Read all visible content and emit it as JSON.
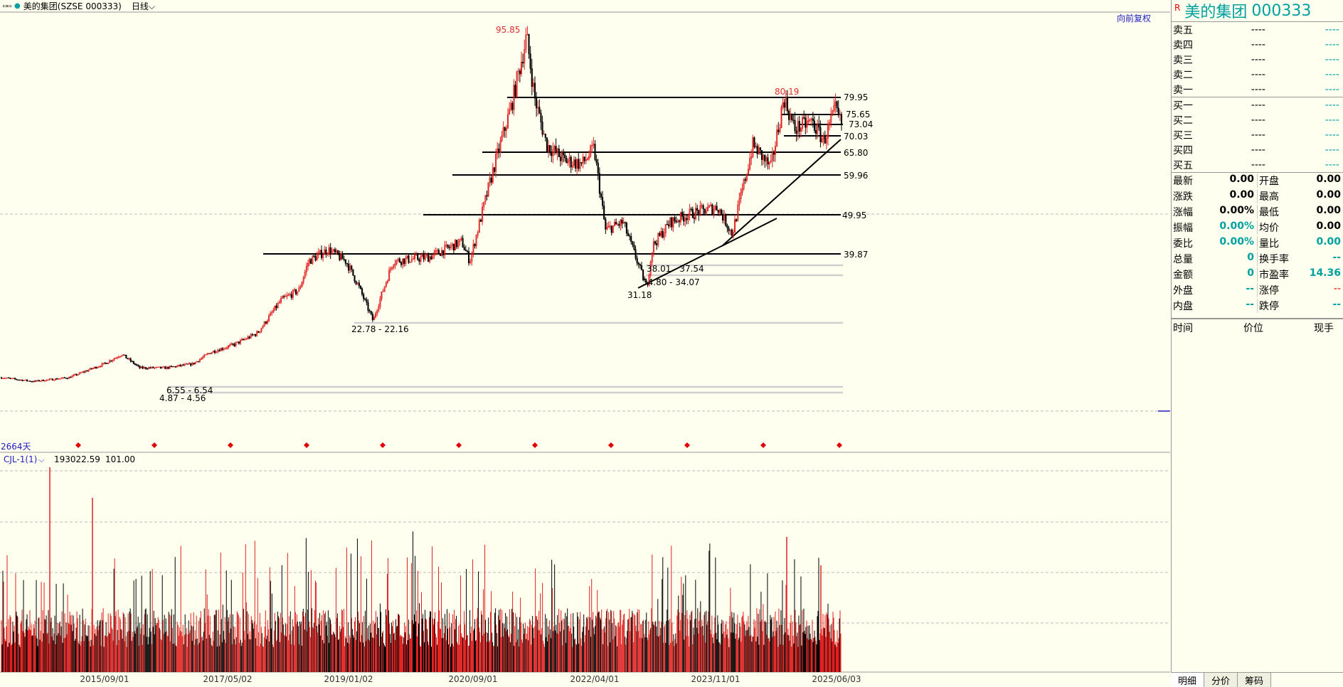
{
  "header": {
    "icon": "▭▭",
    "stock_title": "美的集团(SZSE 000333)",
    "period": "日线",
    "adjust": "向前复权"
  },
  "main_chart": {
    "days_label": "2664天",
    "price_labels": [
      {
        "text": "95.85",
        "color": "#e03030"
      },
      {
        "text": "80.19",
        "color": "#e03030"
      },
      {
        "text": "31.18",
        "color": "#000000"
      },
      {
        "text": "22.78 - 22.16",
        "color": "#000000"
      },
      {
        "text": "38.01 - 37.54",
        "color": "#000000"
      },
      {
        "text": "34.80 - 34.07",
        "color": "#000000"
      },
      {
        "text": "6.55 - 6.54",
        "color": "#000000"
      },
      {
        "text": "4.87 - 4.56",
        "color": "#000000"
      }
    ],
    "levels": [
      "79.95",
      "75.65",
      "73.04",
      "70.03",
      "65.80",
      "59.96",
      "49.95",
      "39.87"
    ],
    "markers_count": 11
  },
  "volume_panel": {
    "indicator": "CJL-1(1)",
    "value1": "193022.59",
    "value2": "101.00"
  },
  "x_axis": {
    "labels": [
      "2015/09/01",
      "2017/05/02",
      "2019/01/02",
      "2020/09/01",
      "2022/04/01",
      "2023/11/01",
      "2025/06/03"
    ]
  },
  "quote_panel": {
    "r_mark": "R",
    "name": "美的集团",
    "code": "000333",
    "asks": [
      {
        "label": "卖五",
        "price": "----",
        "vol": "----"
      },
      {
        "label": "卖四",
        "price": "----",
        "vol": "----"
      },
      {
        "label": "卖三",
        "price": "----",
        "vol": "----"
      },
      {
        "label": "卖二",
        "price": "----",
        "vol": "----"
      },
      {
        "label": "卖一",
        "price": "----",
        "vol": "----"
      }
    ],
    "bids": [
      {
        "label": "买一",
        "price": "----",
        "vol": "----"
      },
      {
        "label": "买二",
        "price": "----",
        "vol": "----"
      },
      {
        "label": "买三",
        "price": "----",
        "vol": "----"
      },
      {
        "label": "买四",
        "price": "----",
        "vol": "----"
      },
      {
        "label": "买五",
        "price": "----",
        "vol": "----"
      }
    ],
    "stats": [
      [
        {
          "label": "最新",
          "value": "0.00",
          "style": ""
        },
        {
          "label": "开盘",
          "value": "0.00",
          "style": ""
        }
      ],
      [
        {
          "label": "涨跌",
          "value": "0.00",
          "style": ""
        },
        {
          "label": "最高",
          "value": "0.00",
          "style": ""
        }
      ],
      [
        {
          "label": "涨幅",
          "value": "0.00%",
          "style": ""
        },
        {
          "label": "最低",
          "value": "0.00",
          "style": ""
        }
      ],
      [
        {
          "label": "振幅",
          "value": "0.00%",
          "style": "teal"
        },
        {
          "label": "均价",
          "value": "0.00",
          "style": ""
        }
      ],
      [
        {
          "label": "委比",
          "value": "0.00%",
          "style": "teal"
        },
        {
          "label": "量比",
          "value": "0.00",
          "style": "teal"
        }
      ],
      [
        {
          "label": "总量",
          "value": "0",
          "style": "teal"
        },
        {
          "label": "换手率",
          "value": "--",
          "style": "teal"
        }
      ],
      [
        {
          "label": "金额",
          "value": "0",
          "style": "teal"
        },
        {
          "label": "市盈率",
          "value": "14.36",
          "style": "teal"
        }
      ],
      [
        {
          "label": "外盘",
          "value": "--",
          "style": "teal"
        },
        {
          "label": "涨停",
          "value": "--",
          "style": "red"
        }
      ],
      [
        {
          "label": "内盘",
          "value": "--",
          "style": "teal"
        },
        {
          "label": "跌停",
          "value": "--",
          "style": "teal"
        }
      ]
    ],
    "ticks_header": {
      "time": "时间",
      "price": "价位",
      "volume": "现手"
    },
    "tabs": [
      "明细",
      "分价",
      "筹码"
    ]
  },
  "colors": {
    "up": "#e02020",
    "down": "#000000",
    "accent": "#00a0a0",
    "background": "#fffff0"
  },
  "chart_data": {
    "type": "candlestick",
    "title": "美的集团(SZSE 000333)",
    "x": [
      "2015/09/01",
      "2017/05/02",
      "2019/01/02",
      "2020/09/01",
      "2022/04/01",
      "2023/11/01",
      "2025/06/03"
    ],
    "price_series": [
      [
        "2013/09/18",
        8.0
      ],
      [
        "2014/03/01",
        7.0
      ],
      [
        "2014/09/01",
        8.0
      ],
      [
        "2015/03/01",
        11.5
      ],
      [
        "2015/06/01",
        14.0
      ],
      [
        "2015/09/01",
        10.5
      ],
      [
        "2016/01/15",
        10.5
      ],
      [
        "2016/06/01",
        11.5
      ],
      [
        "2016/09/01",
        14.5
      ],
      [
        "2017/01/01",
        16.5
      ],
      [
        "2017/05/02",
        19.5
      ],
      [
        "2017/09/01",
        28.0
      ],
      [
        "2017/12/01",
        30.5
      ],
      [
        "2018/01/20",
        38.0
      ],
      [
        "2018/05/01",
        41.0
      ],
      [
        "2018/08/01",
        38.0
      ],
      [
        "2018/10/01",
        32.0
      ],
      [
        "2018/12/20",
        22.5
      ],
      [
        "2019/01/02",
        25.0
      ],
      [
        "2019/04/01",
        38.0
      ],
      [
        "2019/10/01",
        39.0
      ],
      [
        "2020/03/20",
        43.0
      ],
      [
        "2020/05/01",
        38.0
      ],
      [
        "2020/07/01",
        50.0
      ],
      [
        "2020/09/01",
        62.0
      ],
      [
        "2020/12/01",
        78.0
      ],
      [
        "2021/02/18",
        95.85
      ],
      [
        "2021/04/01",
        80.0
      ],
      [
        "2021/06/01",
        68.0
      ],
      [
        "2021/09/01",
        64.0
      ],
      [
        "2021/12/01",
        63.0
      ],
      [
        "2022/02/01",
        67.0
      ],
      [
        "2022/04/01",
        46.0
      ],
      [
        "2022/07/01",
        48.0
      ],
      [
        "2022/10/31",
        31.18
      ],
      [
        "2022/12/01",
        42.0
      ],
      [
        "2023/03/01",
        48.0
      ],
      [
        "2023/06/01",
        50.0
      ],
      [
        "2023/11/01",
        52.0
      ],
      [
        "2024/01/15",
        45.0
      ],
      [
        "2024/05/01",
        68.0
      ],
      [
        "2024/08/01",
        62.0
      ],
      [
        "2024/10/08",
        80.19
      ],
      [
        "2024/12/01",
        72.0
      ],
      [
        "2025/03/01",
        74.0
      ],
      [
        "2025/05/01",
        69.0
      ],
      [
        "2025/07/01",
        77.0
      ],
      [
        "2025/08/01",
        73.04
      ]
    ],
    "support_resistance_levels": [
      79.95,
      75.65,
      73.04,
      70.03,
      65.8,
      59.96,
      49.95,
      39.87
    ],
    "annotations": [
      "95.85",
      "80.19",
      "31.18",
      "22.78 - 22.16",
      "38.01 - 37.54",
      "34.80 - 34.07",
      "6.55 - 6.54",
      "4.87 - 4.56"
    ],
    "volume_indicator": "CJL-1(1)",
    "volume_value": 193022.59,
    "volume_ma": 101.0
  }
}
